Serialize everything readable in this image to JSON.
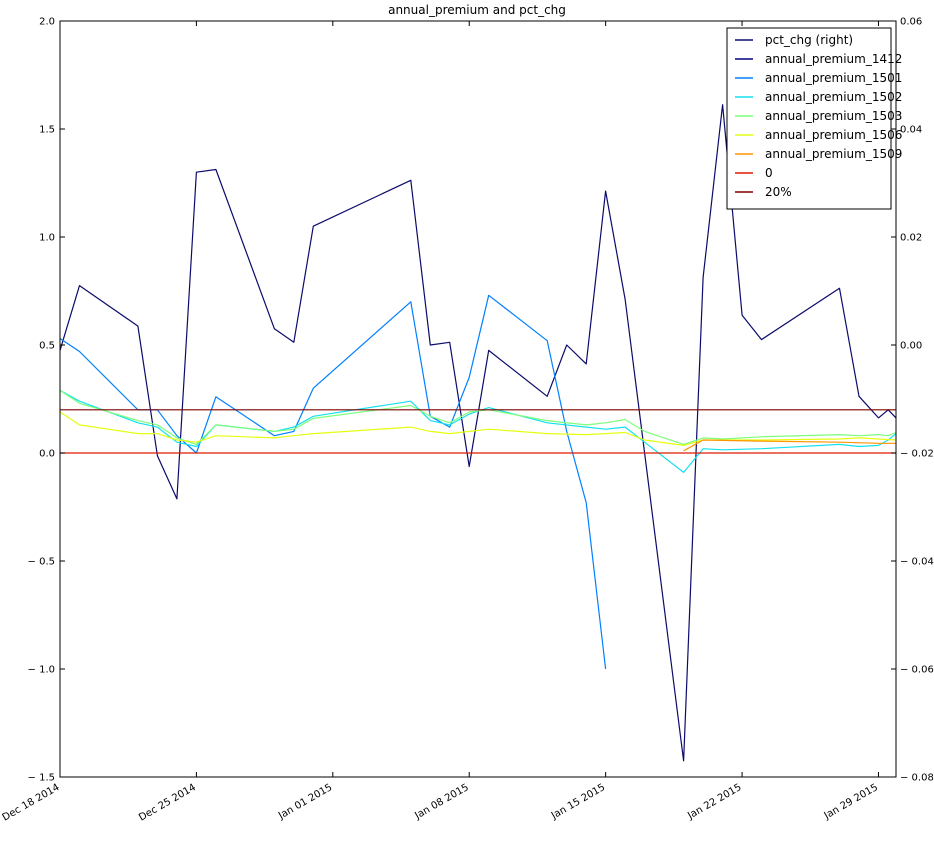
{
  "chart_data": {
    "type": "line",
    "title": "annual_premium and pct_chg",
    "xlabel": "",
    "ylabel": "",
    "x_start": "2014-12-18",
    "x_end": "2015-01-30",
    "x_ticks": [
      {
        "label": "Dec 18 2014",
        "day": 0
      },
      {
        "label": "Dec 25 2014",
        "day": 7
      },
      {
        "label": "Jan 01 2015",
        "day": 14
      },
      {
        "label": "Jan 08 2015",
        "day": 21
      },
      {
        "label": "Jan 15 2015",
        "day": 28
      },
      {
        "label": "Jan 22 2015",
        "day": 35
      },
      {
        "label": "Jan 29 2015",
        "day": 42
      }
    ],
    "x_range_days": [
      0,
      42.9
    ],
    "ylim_left": [
      -1.5,
      2.0
    ],
    "y_ticks_left": [
      {
        "label": "2.0",
        "v": 2.0
      },
      {
        "label": "1.5",
        "v": 1.5
      },
      {
        "label": "1.0",
        "v": 1.0
      },
      {
        "label": "0.5",
        "v": 0.5
      },
      {
        "label": "0.0",
        "v": 0.0
      },
      {
        "label": "− 0.5",
        "v": -0.5
      },
      {
        "label": "− 1.0",
        "v": -1.0
      },
      {
        "label": "− 1.5",
        "v": -1.5
      }
    ],
    "ylim_right": [
      -0.08,
      0.06
    ],
    "y_ticks_right": [
      {
        "label": "0.06",
        "v": 0.06
      },
      {
        "label": "0.04",
        "v": 0.04
      },
      {
        "label": "0.02",
        "v": 0.02
      },
      {
        "label": "0.00",
        "v": 0.0
      },
      {
        "label": "− 0.02",
        "v": -0.02
      },
      {
        "label": "− 0.04",
        "v": -0.04
      },
      {
        "label": "− 0.06",
        "v": -0.06
      },
      {
        "label": "− 0.08",
        "v": -0.08
      }
    ],
    "legend_position": "top-right",
    "series": [
      {
        "name": "pct_chg (right)",
        "axis": "right",
        "color": "#0b0b6b",
        "points": [
          [
            0,
            -0.001
          ],
          [
            1,
            0.011
          ],
          [
            4,
            0.0035
          ],
          [
            5,
            -0.0205
          ],
          [
            6,
            -0.0285
          ],
          [
            7,
            0.032
          ],
          [
            8,
            0.0325
          ],
          [
            11,
            0.003
          ],
          [
            12,
            0.0005
          ],
          [
            13,
            0.022
          ],
          [
            18,
            0.0305
          ],
          [
            19,
            0.0
          ],
          [
            20,
            0.0005
          ],
          [
            21,
            -0.0225
          ],
          [
            22,
            -0.001
          ],
          [
            25,
            -0.0095
          ],
          [
            26,
            0.0
          ],
          [
            27,
            -0.0035
          ],
          [
            28,
            0.0285
          ],
          [
            29,
            0.0085
          ],
          [
            32,
            -0.077
          ],
          [
            33,
            0.0125
          ],
          [
            34,
            0.0445
          ],
          [
            35,
            0.0055
          ],
          [
            36,
            0.001
          ],
          [
            40,
            0.0105
          ],
          [
            41,
            -0.0095
          ],
          [
            42,
            -0.0135
          ],
          [
            42.5,
            -0.012
          ],
          [
            42.9,
            -0.0135
          ]
        ]
      },
      {
        "name": "annual_premium_1412",
        "axis": "left",
        "color": "#00007f",
        "points": []
      },
      {
        "name": "annual_premium_1501",
        "axis": "left",
        "color": "#0080ff",
        "points": [
          [
            0,
            0.53
          ],
          [
            1,
            0.47
          ],
          [
            4,
            0.2
          ],
          [
            5,
            0.2
          ],
          [
            6,
            0.08
          ],
          [
            7,
            0.0
          ],
          [
            8,
            0.26
          ],
          [
            11,
            0.08
          ],
          [
            12,
            0.1
          ],
          [
            13,
            0.3
          ],
          [
            18,
            0.7
          ],
          [
            19,
            0.17
          ],
          [
            20,
            0.12
          ],
          [
            21,
            0.35
          ],
          [
            22,
            0.73
          ],
          [
            25,
            0.52
          ],
          [
            26,
            0.1
          ],
          [
            27,
            -0.23
          ],
          [
            28,
            -1.0
          ]
        ]
      },
      {
        "name": "annual_premium_1502",
        "axis": "left",
        "color": "#15e0ef",
        "points": [
          [
            0,
            0.29
          ],
          [
            1,
            0.24
          ],
          [
            4,
            0.14
          ],
          [
            5,
            0.12
          ],
          [
            6,
            0.05
          ],
          [
            7,
            0.03
          ],
          [
            8,
            0.13
          ],
          [
            11,
            0.1
          ],
          [
            12,
            0.12
          ],
          [
            13,
            0.17
          ],
          [
            18,
            0.24
          ],
          [
            19,
            0.15
          ],
          [
            20,
            0.13
          ],
          [
            21,
            0.18
          ],
          [
            22,
            0.21
          ],
          [
            25,
            0.14
          ],
          [
            27,
            0.12
          ],
          [
            28,
            0.11
          ],
          [
            29,
            0.12
          ],
          [
            30,
            0.05
          ],
          [
            32,
            -0.09
          ],
          [
            33,
            0.02
          ],
          [
            34,
            0.015
          ],
          [
            36,
            0.02
          ],
          [
            40,
            0.04
          ],
          [
            41,
            0.03
          ],
          [
            42,
            0.035
          ],
          [
            42.5,
            0.06
          ],
          [
            42.9,
            0.09
          ]
        ]
      },
      {
        "name": "annual_premium_1503",
        "axis": "left",
        "color": "#7cff79",
        "points": [
          [
            0,
            0.29
          ],
          [
            1,
            0.23
          ],
          [
            4,
            0.15
          ],
          [
            5,
            0.13
          ],
          [
            6,
            0.07
          ],
          [
            7,
            0.04
          ],
          [
            8,
            0.13
          ],
          [
            11,
            0.1
          ],
          [
            12,
            0.11
          ],
          [
            13,
            0.16
          ],
          [
            18,
            0.22
          ],
          [
            19,
            0.17
          ],
          [
            20,
            0.14
          ],
          [
            21,
            0.19
          ],
          [
            22,
            0.2
          ],
          [
            25,
            0.15
          ],
          [
            27,
            0.13
          ],
          [
            28,
            0.14
          ],
          [
            29,
            0.155
          ],
          [
            30,
            0.1
          ],
          [
            32,
            0.04
          ],
          [
            33,
            0.07
          ],
          [
            34,
            0.065
          ],
          [
            36,
            0.075
          ],
          [
            40,
            0.085
          ],
          [
            41,
            0.08
          ],
          [
            42,
            0.085
          ],
          [
            42.5,
            0.08
          ],
          [
            42.9,
            0.095
          ]
        ]
      },
      {
        "name": "annual_premium_1506",
        "axis": "left",
        "color": "#e4ff12",
        "points": [
          [
            0,
            0.19
          ],
          [
            1,
            0.13
          ],
          [
            4,
            0.09
          ],
          [
            5,
            0.09
          ],
          [
            6,
            0.06
          ],
          [
            7,
            0.05
          ],
          [
            8,
            0.08
          ],
          [
            11,
            0.07
          ],
          [
            12,
            0.08
          ],
          [
            13,
            0.09
          ],
          [
            18,
            0.12
          ],
          [
            19,
            0.1
          ],
          [
            20,
            0.09
          ],
          [
            21,
            0.1
          ],
          [
            22,
            0.11
          ],
          [
            25,
            0.09
          ],
          [
            27,
            0.085
          ],
          [
            28,
            0.09
          ],
          [
            29,
            0.095
          ],
          [
            30,
            0.06
          ],
          [
            32,
            0.035
          ],
          [
            33,
            0.06
          ],
          [
            34,
            0.06
          ],
          [
            36,
            0.06
          ],
          [
            40,
            0.065
          ],
          [
            41,
            0.07
          ],
          [
            42,
            0.065
          ],
          [
            42.9,
            0.06
          ]
        ]
      },
      {
        "name": "annual_premium_1509",
        "axis": "left",
        "color": "#ff9400",
        "points": [
          [
            32,
            0.01
          ],
          [
            33,
            0.06
          ],
          [
            36,
            0.055
          ],
          [
            40,
            0.05
          ],
          [
            42,
            0.045
          ],
          [
            42.9,
            0.045
          ]
        ]
      },
      {
        "name": "0",
        "axis": "left",
        "color": "#e11b00",
        "points": [
          [
            0,
            0.0
          ],
          [
            42.9,
            0.0
          ]
        ]
      },
      {
        "name": "20%",
        "axis": "left",
        "color": "#7f0000",
        "points": [
          [
            0,
            0.2
          ],
          [
            42.9,
            0.2
          ]
        ]
      }
    ]
  }
}
